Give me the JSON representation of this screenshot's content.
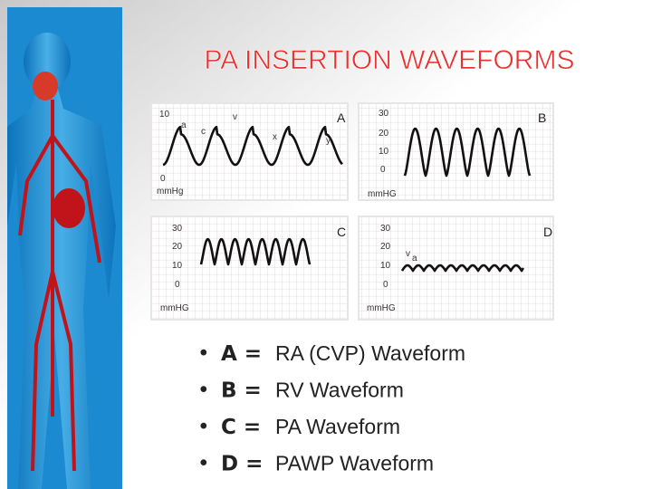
{
  "title": "PA INSERTION WAVEFORMS",
  "panels": [
    {
      "label": "A",
      "axis_labels": [
        "10",
        "0",
        "mmHg"
      ],
      "wave_labels": [
        "a",
        "c",
        "v",
        "x",
        "y"
      ]
    },
    {
      "label": "B",
      "axis_labels": [
        "30",
        "20",
        "10",
        "0",
        "mmHG"
      ],
      "wave_labels": []
    },
    {
      "label": "C",
      "axis_labels": [
        "30",
        "20",
        "10",
        "0",
        "mmHG"
      ],
      "wave_labels": []
    },
    {
      "label": "D",
      "axis_labels": [
        "30",
        "20",
        "10",
        "0",
        "mmHG"
      ],
      "wave_labels": [
        "v",
        "a"
      ]
    }
  ],
  "bullets": [
    {
      "key": "A =",
      "text": "RA (CVP) Waveform"
    },
    {
      "key": "B =",
      "text": "RV Waveform"
    },
    {
      "key": "C =",
      "text": "PA Waveform"
    },
    {
      "key": "D =",
      "text": "PAWP Waveform"
    }
  ]
}
